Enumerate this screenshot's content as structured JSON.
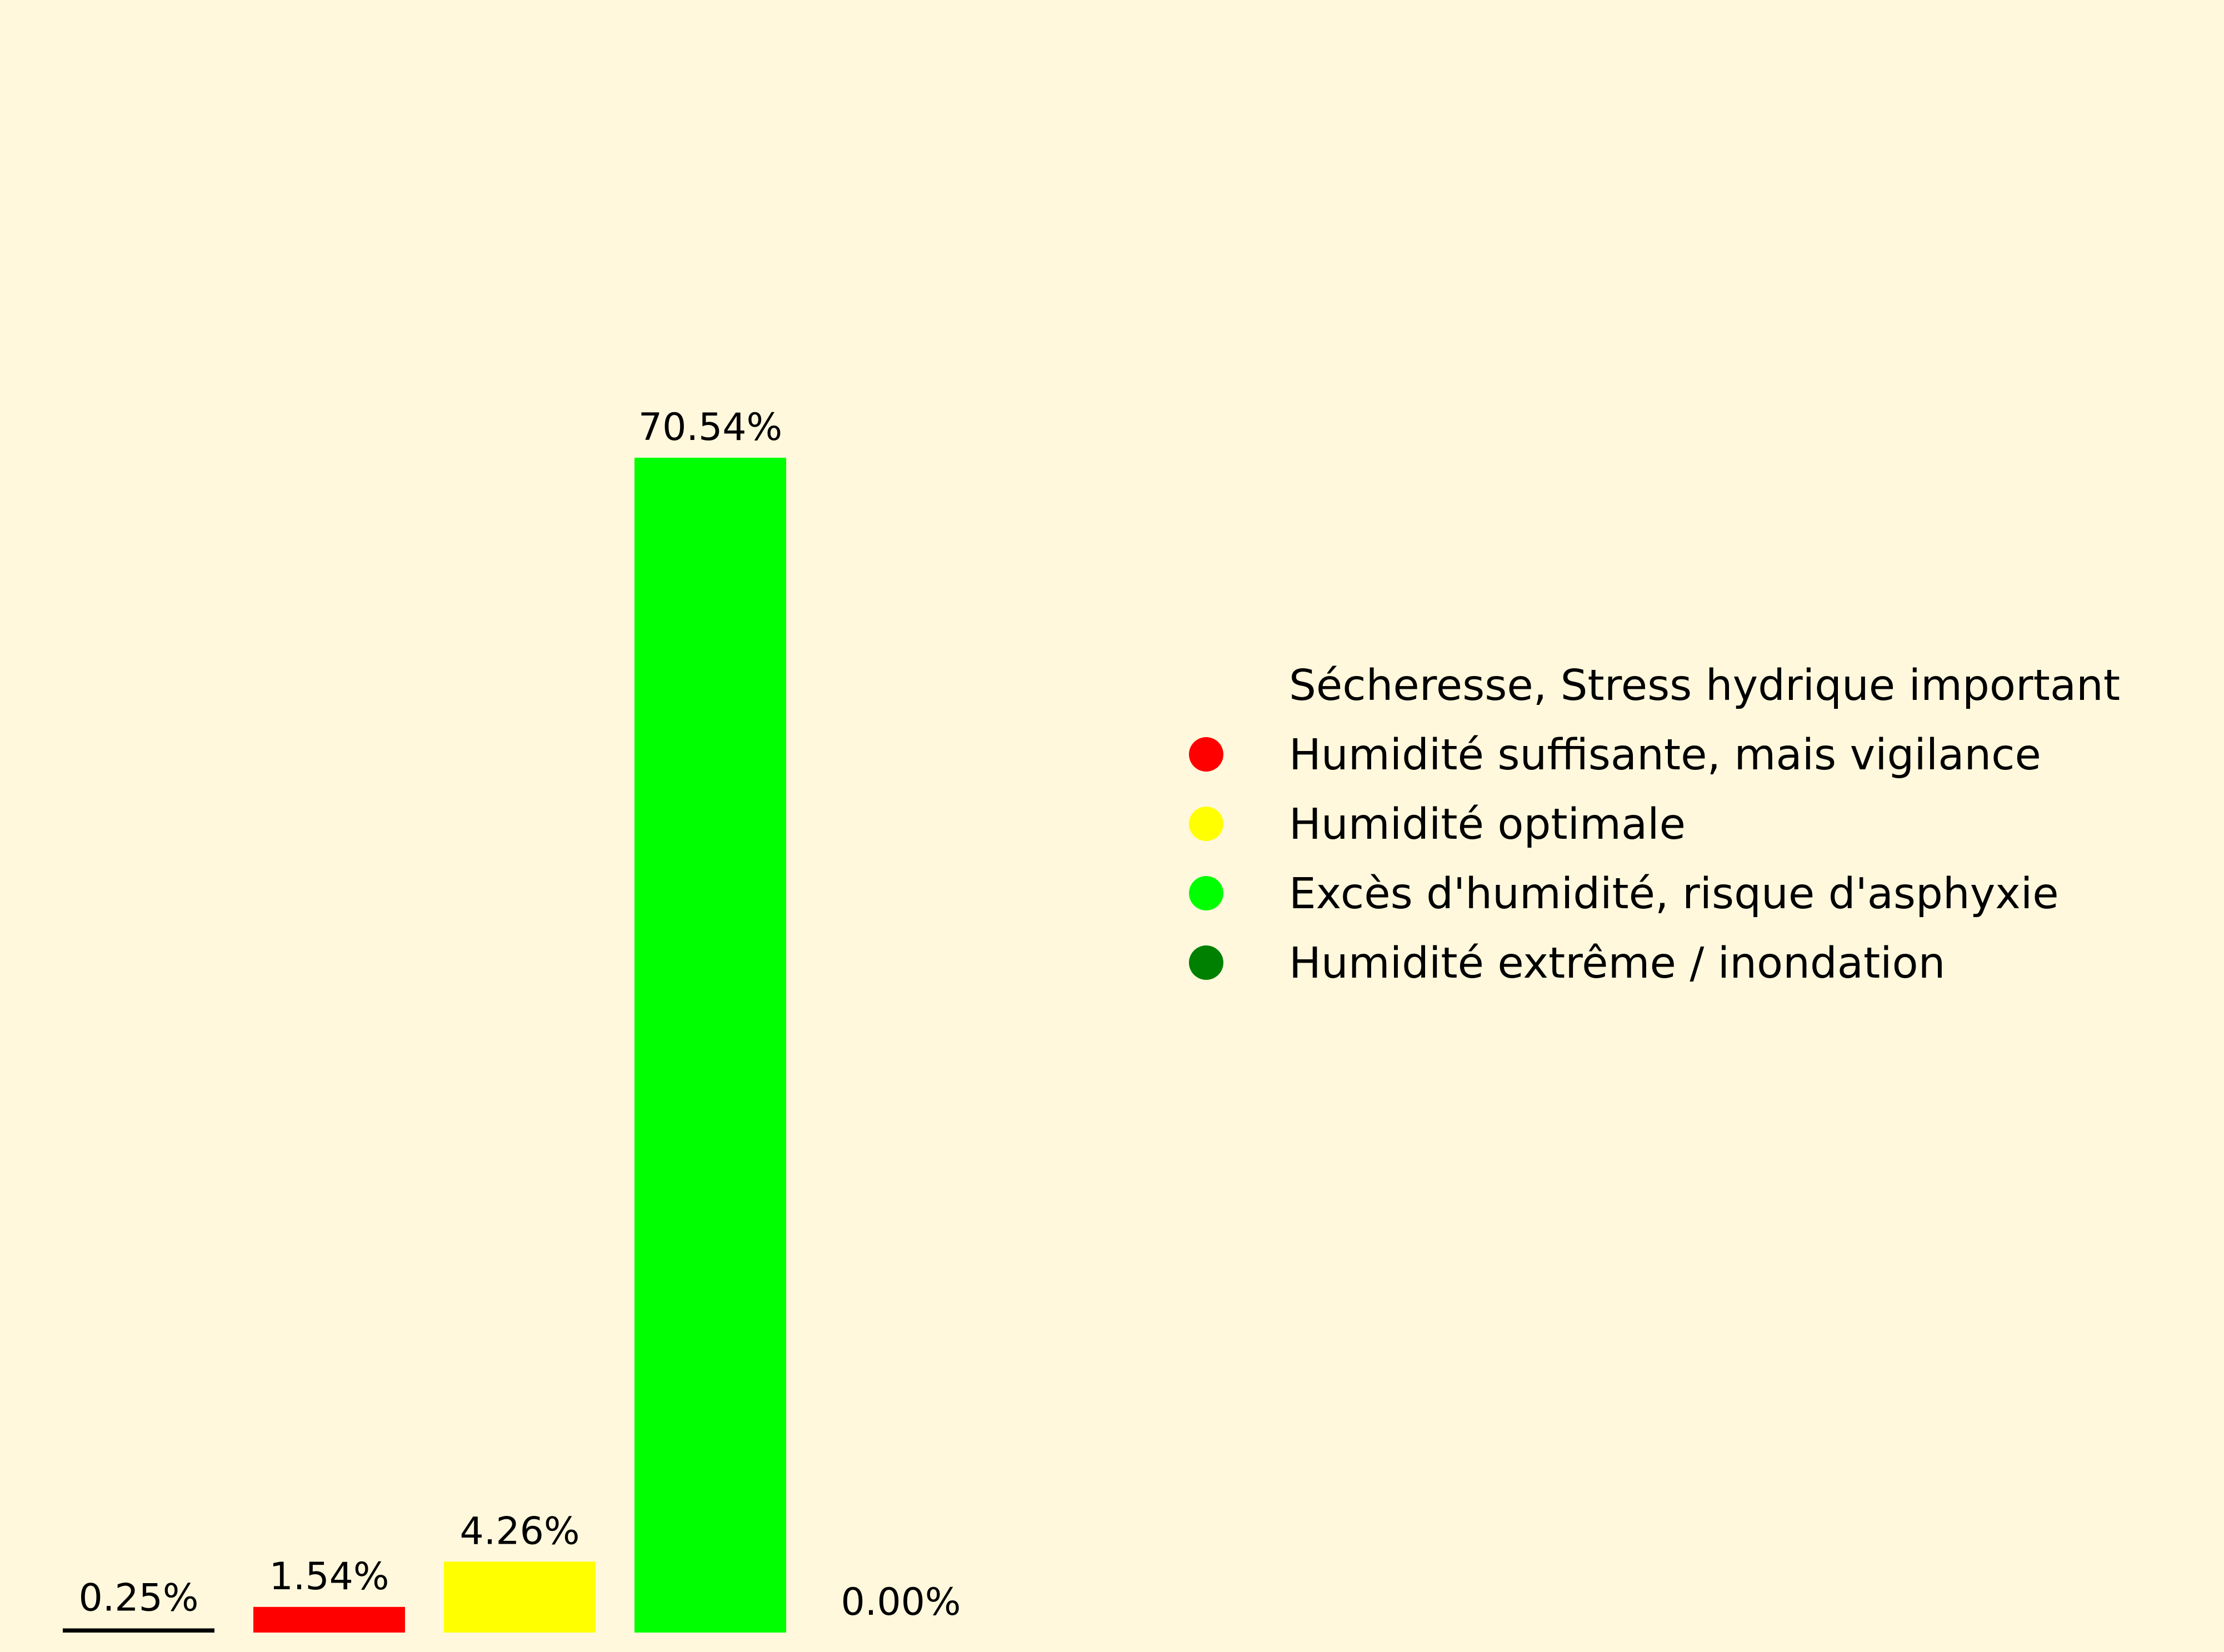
{
  "chart_data": {
    "type": "bar",
    "title": "",
    "xlabel": "",
    "ylabel": "",
    "categories": [
      "Sécheresse, Stress hydrique important",
      "Humidité suffisante, mais vigilance",
      "Humidité optimale",
      "Excès d'humidité, risque d'asphyxie",
      "Humidité extrême / inondation"
    ],
    "values": [
      0.25,
      1.54,
      4.26,
      70.54,
      0.0
    ],
    "value_labels": [
      "0.25%",
      "1.54%",
      "4.26%",
      "70.54%",
      "0.00%"
    ],
    "colors": [
      "#000000",
      "#ff0000",
      "#ffff00",
      "#00ff00",
      "#008000"
    ],
    "legend_dot_colors": [
      "#fff8dc",
      "#ff0000",
      "#ffff00",
      "#00ff00",
      "#008000"
    ],
    "ylim": [
      0,
      82
    ],
    "grid": false,
    "axes_visible": false,
    "legend_position": "right",
    "background": "#fff8dc"
  }
}
